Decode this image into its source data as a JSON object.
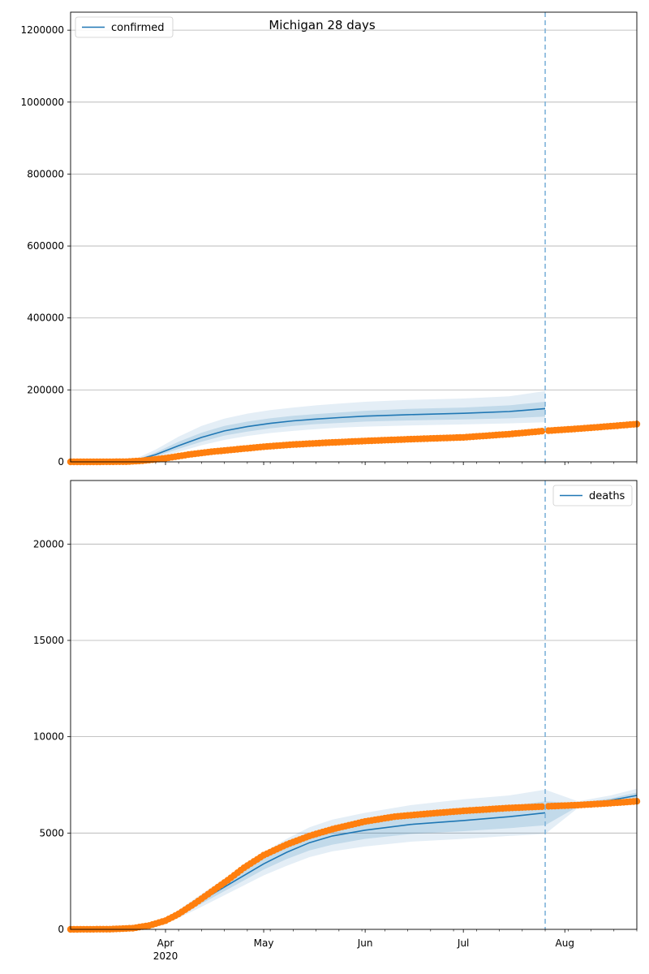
{
  "figure": {
    "suptitle": "Michigan 28 days",
    "colors": {
      "model": "#1f77b4",
      "observed": "#ff7f0e",
      "grid": "#b0b0b0",
      "axes": "#000000",
      "forecast_line": "#7fb3d9"
    }
  },
  "chart_data": [
    {
      "type": "line",
      "title": "",
      "legend": {
        "label": "confirmed",
        "placement": "top-left"
      },
      "xlabel": "",
      "ylabel": "",
      "xlim": [
        "2020-03-03",
        "2020-08-23"
      ],
      "ylim": [
        0,
        1250000
      ],
      "yticks": [
        0,
        200000,
        400000,
        600000,
        800000,
        1000000,
        1200000
      ],
      "grid": true,
      "forecast_start": "2020-07-26",
      "x_major_ticks": [
        {
          "date": "2020-04-01",
          "label": "Apr",
          "sublabel": "2020"
        },
        {
          "date": "2020-05-01",
          "label": "May",
          "sublabel": ""
        },
        {
          "date": "2020-06-01",
          "label": "Jun",
          "sublabel": ""
        },
        {
          "date": "2020-07-01",
          "label": "Jul",
          "sublabel": ""
        },
        {
          "date": "2020-08-01",
          "label": "Aug",
          "sublabel": ""
        }
      ],
      "show_xtick_labels": false,
      "model": {
        "name": "confirmed",
        "x": [
          "2020-03-03",
          "2020-03-15",
          "2020-03-22",
          "2020-03-29",
          "2020-04-05",
          "2020-04-12",
          "2020-04-19",
          "2020-04-26",
          "2020-05-03",
          "2020-05-10",
          "2020-05-17",
          "2020-05-24",
          "2020-06-01",
          "2020-06-14",
          "2020-07-01",
          "2020-07-15",
          "2020-07-26"
        ],
        "median": [
          0,
          0,
          2000,
          20000,
          45000,
          68000,
          86000,
          98000,
          107000,
          114000,
          119000,
          123000,
          127000,
          131000,
          135000,
          140000,
          148000
        ],
        "inner": {
          "lo": [
            0,
            0,
            1000,
            15000,
            36000,
            56000,
            73000,
            84000,
            93000,
            100000,
            105000,
            108000,
            112000,
            115000,
            118000,
            121000,
            126000
          ],
          "hi": [
            0,
            0,
            3000,
            26000,
            56000,
            81000,
            100000,
            112000,
            121000,
            128000,
            133000,
            137000,
            142000,
            147000,
            151000,
            157000,
            167000
          ]
        },
        "outer": {
          "lo": [
            0,
            0,
            500,
            11000,
            28000,
            46000,
            61000,
            72000,
            80000,
            86000,
            91000,
            95000,
            98000,
            101000,
            104000,
            107000,
            110000
          ],
          "hi": [
            0,
            0,
            5000,
            34000,
            70000,
            100000,
            120000,
            134000,
            144000,
            151000,
            157000,
            162000,
            167000,
            172000,
            176000,
            182000,
            197000
          ]
        }
      },
      "observed": {
        "x": [
          "2020-03-03",
          "2020-03-10",
          "2020-03-20",
          "2020-03-25",
          "2020-04-01",
          "2020-04-08",
          "2020-04-15",
          "2020-04-22",
          "2020-05-01",
          "2020-05-10",
          "2020-05-20",
          "2020-06-01",
          "2020-06-15",
          "2020-07-01",
          "2020-07-15",
          "2020-07-26",
          "2020-08-05",
          "2020-08-15",
          "2020-08-23"
        ],
        "y": [
          0,
          0,
          500,
          3000,
          10000,
          20000,
          28000,
          34000,
          42000,
          48000,
          53000,
          58000,
          63000,
          68000,
          77000,
          86000,
          92000,
          99000,
          105000
        ]
      }
    },
    {
      "type": "line",
      "title": "",
      "legend": {
        "label": "deaths",
        "placement": "top-right"
      },
      "xlabel": "",
      "ylabel": "",
      "xlim": [
        "2020-03-03",
        "2020-08-23"
      ],
      "ylim": [
        0,
        23300
      ],
      "yticks": [
        0,
        5000,
        10000,
        15000,
        20000
      ],
      "grid": true,
      "forecast_start": "2020-07-26",
      "x_major_ticks": [
        {
          "date": "2020-04-01",
          "label": "Apr",
          "sublabel": "2020"
        },
        {
          "date": "2020-05-01",
          "label": "May",
          "sublabel": ""
        },
        {
          "date": "2020-06-01",
          "label": "Jun",
          "sublabel": ""
        },
        {
          "date": "2020-07-01",
          "label": "Jul",
          "sublabel": ""
        },
        {
          "date": "2020-08-01",
          "label": "Aug",
          "sublabel": ""
        }
      ],
      "show_xtick_labels": true,
      "model": {
        "name": "deaths",
        "x": [
          "2020-03-03",
          "2020-03-20",
          "2020-03-27",
          "2020-04-03",
          "2020-04-10",
          "2020-04-17",
          "2020-04-24",
          "2020-05-01",
          "2020-05-08",
          "2020-05-15",
          "2020-05-22",
          "2020-06-01",
          "2020-06-15",
          "2020-07-01",
          "2020-07-15",
          "2020-07-26",
          "2020-08-05",
          "2020-08-15",
          "2020-08-23"
        ],
        "median": [
          0,
          50,
          200,
          600,
          1300,
          2000,
          2700,
          3400,
          4000,
          4500,
          4850,
          5150,
          5450,
          5650,
          5850,
          6050,
          6450,
          6700,
          6950
        ],
        "inner": {
          "lo": [
            0,
            40,
            170,
            520,
            1150,
            1800,
            2450,
            3100,
            3650,
            4100,
            4400,
            4700,
            4950,
            5100,
            5250,
            5400,
            6380,
            6600,
            6800
          ],
          "hi": [
            0,
            60,
            230,
            680,
            1450,
            2200,
            2950,
            3700,
            4350,
            4900,
            5300,
            5600,
            5950,
            6200,
            6400,
            6650,
            6550,
            6800,
            7100
          ]
        },
        "outer": {
          "lo": [
            0,
            30,
            140,
            440,
            1000,
            1600,
            2200,
            2800,
            3300,
            3750,
            4050,
            4300,
            4550,
            4700,
            4850,
            4950,
            6300,
            6500,
            6650
          ],
          "hi": [
            0,
            70,
            260,
            760,
            1600,
            2400,
            3200,
            4000,
            4700,
            5300,
            5700,
            6050,
            6450,
            6750,
            6950,
            7250,
            6650,
            6950,
            7300
          ]
        }
      },
      "observed": {
        "x": [
          "2020-03-03",
          "2020-03-15",
          "2020-03-22",
          "2020-03-27",
          "2020-04-01",
          "2020-04-05",
          "2020-04-10",
          "2020-04-15",
          "2020-04-20",
          "2020-04-25",
          "2020-05-01",
          "2020-05-08",
          "2020-05-15",
          "2020-05-22",
          "2020-06-01",
          "2020-06-10",
          "2020-06-20",
          "2020-07-01",
          "2020-07-15",
          "2020-07-26",
          "2020-08-05",
          "2020-08-15",
          "2020-08-23"
        ],
        "y": [
          0,
          10,
          60,
          200,
          450,
          800,
          1350,
          1950,
          2550,
          3200,
          3850,
          4400,
          4850,
          5200,
          5600,
          5850,
          6000,
          6150,
          6300,
          6380,
          6450,
          6550,
          6650
        ]
      }
    }
  ]
}
